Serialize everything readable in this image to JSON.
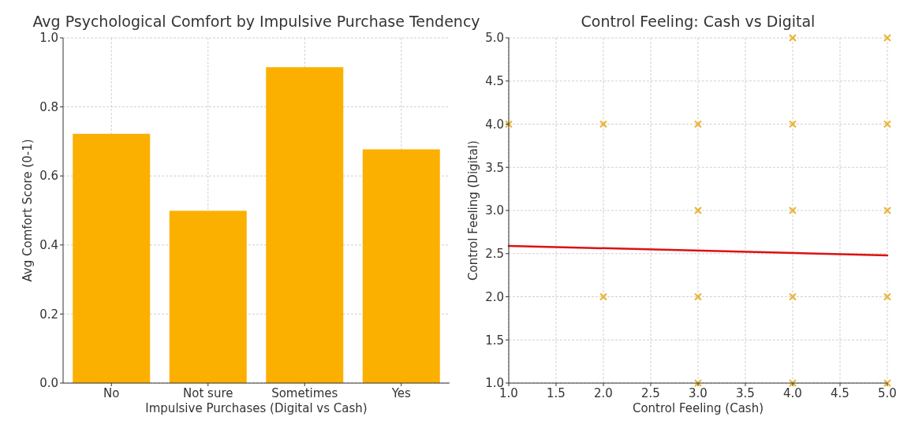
{
  "chart_data": [
    {
      "type": "bar",
      "title": "Avg Psychological Comfort by Impulsive Purchase Tendency",
      "xlabel": "Impulsive Purchases (Digital vs Cash)",
      "ylabel": "Avg Comfort Score (0-1)",
      "categories": [
        "No",
        "Not sure",
        "Sometimes",
        "Yes"
      ],
      "values": [
        0.722,
        0.499,
        0.915,
        0.677
      ],
      "color": "#fbb000",
      "ylim": [
        0,
        1
      ],
      "yticks": [
        {
          "value": 0,
          "label": "0.0"
        },
        0.2,
        0.4,
        0.6,
        0.8,
        {
          "value": 1,
          "label": "1.0"
        }
      ],
      "grid": true
    },
    {
      "type": "scatter",
      "title": "Control Feeling: Cash vs Digital",
      "xlabel": "Control Feeling (Cash)",
      "ylabel": "Control Feeling (Digital)",
      "xlim": [
        1,
        5
      ],
      "ylim": [
        1,
        5
      ],
      "xticks": [
        {
          "value": 1,
          "label": "1.0"
        },
        1.5,
        {
          "value": 2,
          "label": "2.0"
        },
        2.5,
        {
          "value": 3,
          "label": "3.0"
        },
        3.5,
        {
          "value": 4,
          "label": "4.0"
        },
        4.5,
        {
          "value": 5,
          "label": "5.0"
        }
      ],
      "yticks": [
        {
          "value": 1,
          "label": "1.0"
        },
        1.5,
        {
          "value": 2,
          "label": "2.0"
        },
        2.5,
        {
          "value": 3,
          "label": "3.0"
        },
        3.5,
        {
          "value": 4,
          "label": "4.0"
        },
        4.5,
        {
          "value": 5,
          "label": "5.0"
        }
      ],
      "grid": true,
      "series": [
        {
          "type": "scatter",
          "color": "#e9b430",
          "marker": "cross",
          "x": [
            1,
            2,
            3,
            4,
            5,
            3,
            4,
            5,
            2,
            3,
            4,
            5,
            3,
            4,
            5,
            4,
            5
          ],
          "values": [
            4,
            4,
            4,
            4,
            4,
            3,
            3,
            3,
            2,
            2,
            2,
            2,
            1,
            1,
            1,
            5,
            5
          ]
        },
        {
          "type": "line",
          "color": "#dd1111",
          "x": [
            1,
            5
          ],
          "values": [
            2.59,
            2.48
          ]
        }
      ]
    }
  ]
}
